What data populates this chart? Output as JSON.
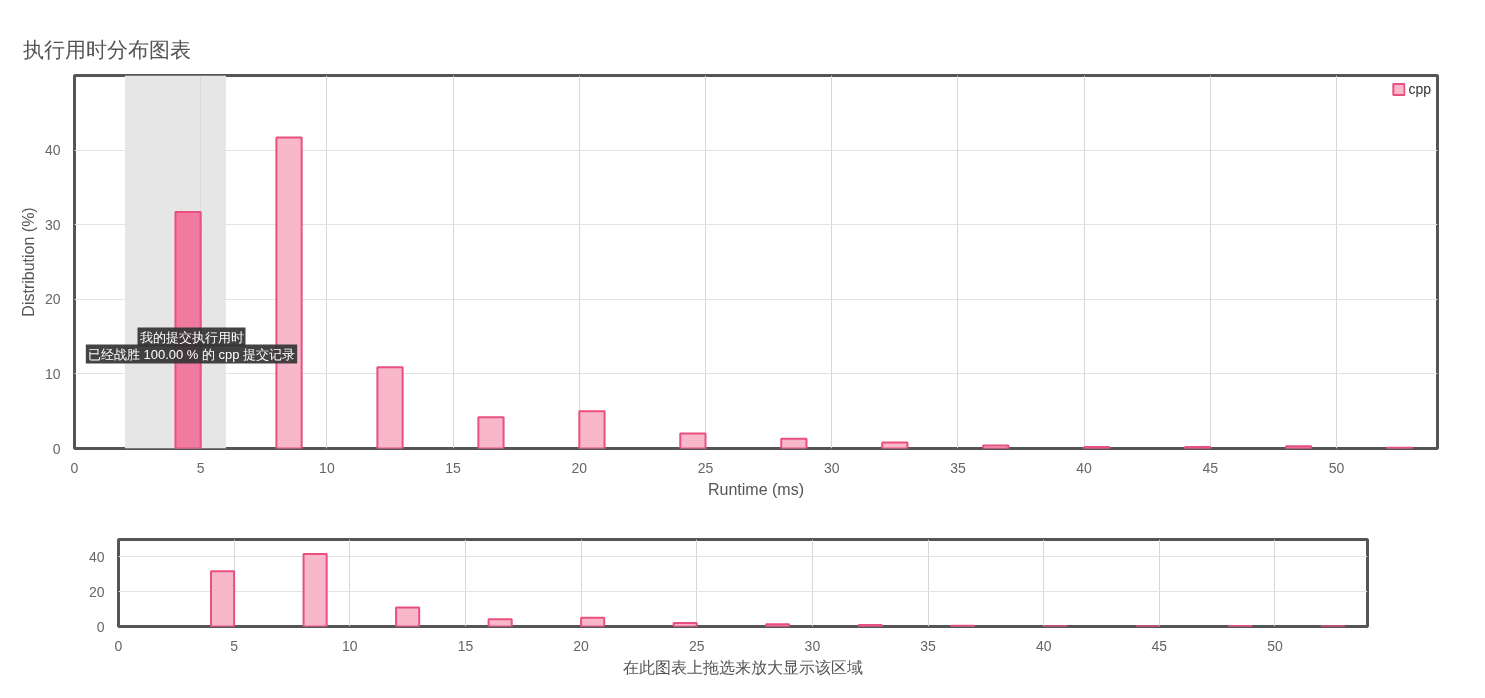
{
  "chart_data": [
    {
      "type": "bar",
      "title": "执行用时分布图表",
      "xlabel": "Runtime (ms)",
      "ylabel": "Distribution (%)",
      "x": [
        4.5,
        8.5,
        12.5,
        16.5,
        20.5,
        24.5,
        28.5,
        32.5,
        36.5,
        40.5,
        44.5,
        48.5,
        52.5
      ],
      "series": [
        {
          "name": "cpp",
          "color": "#e8507f",
          "colors": [
            "#f07aa0",
            "#f9b7cb",
            "#f9b7cb",
            "#f9b7cb",
            "#f9b7cb",
            "#f9b7cb",
            "#f9b7cb",
            "#f9b7cb",
            "#f9b7cb",
            "#f9b7cb",
            "#f9b7cb",
            "#f9b7cb",
            "#f9b7cb"
          ],
          "values": [
            31.7,
            41.7,
            10.9,
            4.2,
            5.0,
            2.0,
            1.3,
            0.8,
            0.4,
            0.2,
            0.2,
            0.3,
            0.1
          ]
        }
      ],
      "xlim": [
        0,
        54
      ],
      "xticks": [
        0,
        5,
        10,
        15,
        20,
        25,
        30,
        35,
        40,
        45,
        50
      ],
      "ylim": [
        0,
        50
      ],
      "yticks": [
        0,
        10,
        20,
        30,
        40
      ],
      "grid": true,
      "legend": "top right",
      "bands": [
        {
          "axis": "x",
          "from": 2,
          "to": 6,
          "color": "#e6e6e6"
        }
      ],
      "annotations": [
        "我的提交执行用时",
        "已经战胜 100.00 % 的 cpp 提交记录"
      ]
    },
    {
      "type": "bar",
      "xlabel": "在此图表上拖选来放大显示该区域",
      "x": [
        4.5,
        8.5,
        12.5,
        16.5,
        20.5,
        24.5,
        28.5,
        32.5,
        36.5,
        40.5,
        44.5,
        48.5,
        52.5
      ],
      "series": [
        {
          "color": "#e8507f",
          "colors": [
            "#f9b7cb",
            "#f9b7cb",
            "#f9b7cb",
            "#f9b7cb",
            "#f9b7cb",
            "#f9b7cb",
            "#f9b7cb",
            "#f9b7cb",
            "#f9b7cb",
            "#f9b7cb",
            "#f9b7cb",
            "#f9b7cb",
            "#f9b7cb"
          ],
          "values": [
            31.7,
            41.7,
            10.9,
            4.2,
            5.0,
            2.0,
            1.3,
            0.8,
            0.4,
            0.2,
            0.2,
            0.3,
            0.1
          ]
        }
      ],
      "xlim": [
        0,
        54
      ],
      "xticks": [
        0,
        5,
        10,
        15,
        20,
        25,
        30,
        35,
        40,
        45,
        50
      ],
      "ylim": [
        0,
        50
      ],
      "yticks": [
        0,
        20,
        40
      ],
      "grid": true
    }
  ]
}
